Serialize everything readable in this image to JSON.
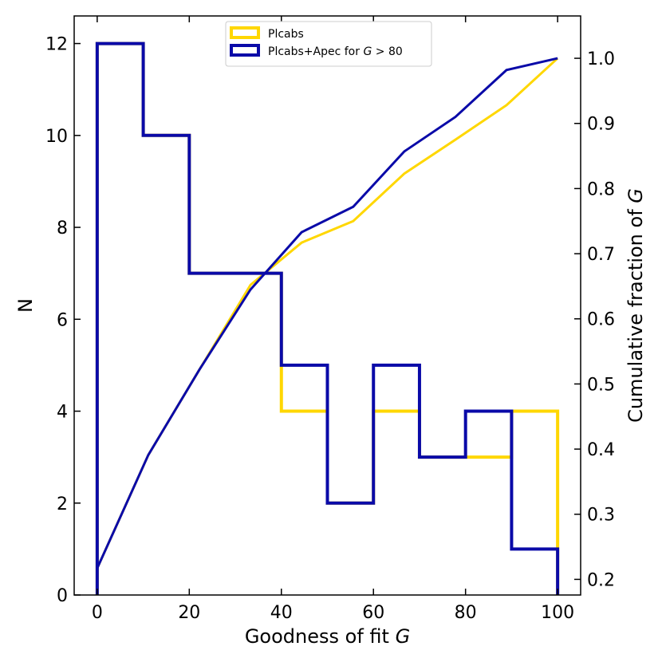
{
  "chart_data": {
    "type": "histogram-with-cumulative",
    "xlabel": "Goodness of fit G",
    "ylabel_left": "N",
    "ylabel_right": "Cumulative fraction of G",
    "xlim": [
      -5,
      105
    ],
    "ylim_left": [
      0,
      12.6
    ],
    "ylim_right": [
      0.176,
      1.065
    ],
    "x_ticks": [
      0,
      20,
      40,
      60,
      80,
      100
    ],
    "y_left_ticks": [
      0,
      2,
      4,
      6,
      8,
      10,
      12
    ],
    "y_right_ticks": [
      0.2,
      0.3,
      0.4,
      0.5,
      0.6,
      0.7,
      0.8,
      0.9,
      1.0
    ],
    "bin_edges": [
      0,
      10,
      20,
      30,
      40,
      50,
      60,
      70,
      80,
      90,
      100
    ],
    "legend": {
      "location": "upper-center"
    },
    "series": [
      {
        "name": "Plcabs",
        "legend_label": "Plcabs",
        "color": "#FFD700",
        "histogram": [
          12,
          10,
          7,
          7,
          4,
          2,
          4,
          3,
          3,
          4
        ],
        "cumulative": {
          "x": [
            0,
            11.1,
            22.2,
            33.3,
            44.4,
            55.6,
            66.7,
            77.8,
            88.9,
            100
          ],
          "y": [
            0.217,
            0.391,
            0.522,
            0.652,
            0.717,
            0.75,
            0.823,
            0.875,
            0.928,
            1.0
          ]
        }
      },
      {
        "name": "Plcabs+Apec for G>80",
        "legend_label_prefix": "Plcabs+Apec for ",
        "legend_label_var": "G",
        "legend_label_suffix": " > 80",
        "color": "#0A0AA8",
        "histogram": [
          12,
          10,
          7,
          7,
          5,
          2,
          5,
          3,
          4,
          1
        ],
        "cumulative": {
          "x": [
            0,
            11.1,
            22.2,
            33.3,
            44.4,
            55.6,
            66.7,
            77.8,
            88.9,
            100
          ],
          "y": [
            0.217,
            0.391,
            0.522,
            0.645,
            0.733,
            0.772,
            0.857,
            0.91,
            0.982,
            1.0
          ]
        }
      }
    ]
  }
}
